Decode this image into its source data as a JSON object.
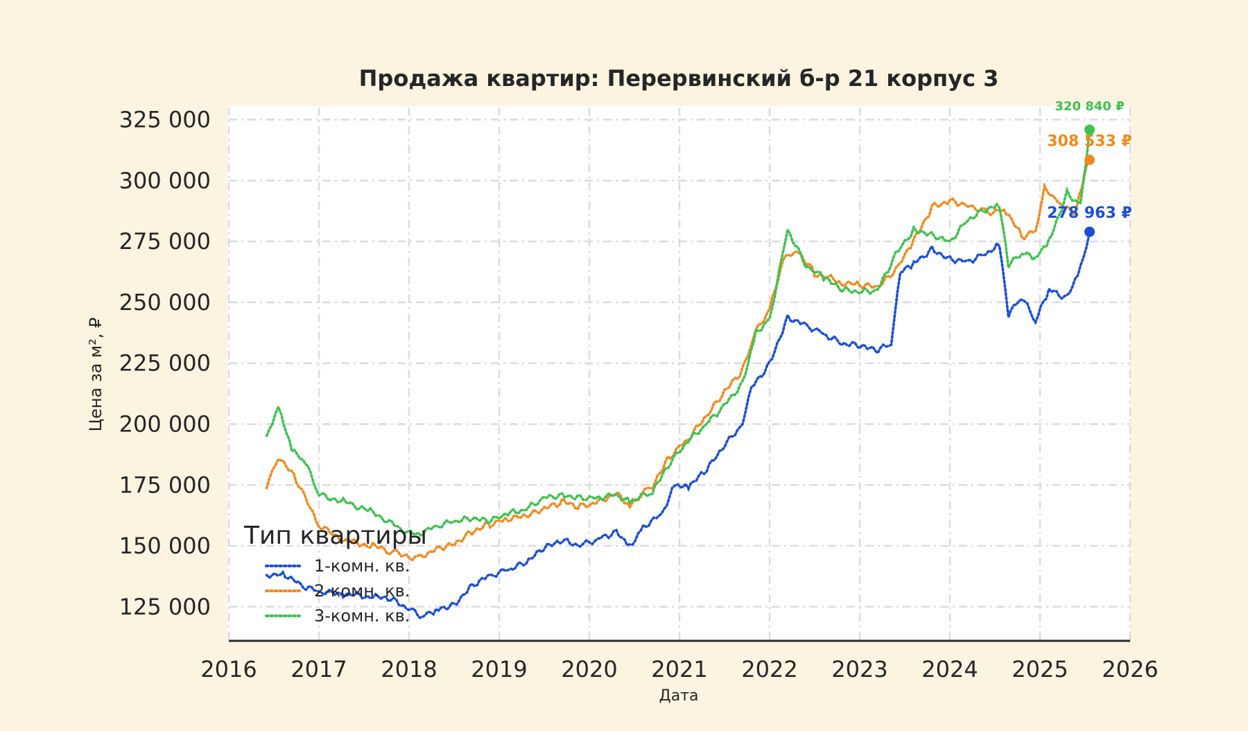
{
  "chart_data": {
    "type": "line",
    "title": "Продажа квартир: Перервинский б-р 21 корпус 3",
    "xlabel": "Дата",
    "ylabel": "Цена за м², ₽",
    "x_range": [
      2016,
      2026
    ],
    "ylim": [
      111000,
      330000
    ],
    "x_ticks": [
      "2016",
      "2017",
      "2018",
      "2019",
      "2020",
      "2021",
      "2022",
      "2023",
      "2024",
      "2025",
      "2026"
    ],
    "y_ticks": [
      {
        "value": 125000,
        "label": "125 000"
      },
      {
        "value": 150000,
        "label": "150 000"
      },
      {
        "value": 175000,
        "label": "175 000"
      },
      {
        "value": 200000,
        "label": "200 000"
      },
      {
        "value": 225000,
        "label": "225 000"
      },
      {
        "value": 250000,
        "label": "250 000"
      },
      {
        "value": 275000,
        "label": "275 000"
      },
      {
        "value": 300000,
        "label": "300 000"
      },
      {
        "value": 325000,
        "label": "325 000"
      }
    ],
    "grid": true,
    "legend": {
      "title": "Тип квартиры",
      "position": "bottom-left"
    },
    "series": [
      {
        "name": "1-комн. кв.",
        "color": "#1a4fd6",
        "x": [
          2016.42,
          2016.6,
          2016.8,
          2017.0,
          2017.3,
          2017.6,
          2017.8,
          2018.0,
          2018.15,
          2018.3,
          2018.5,
          2018.7,
          2018.9,
          2019.1,
          2019.3,
          2019.5,
          2019.7,
          2019.9,
          2020.1,
          2020.3,
          2020.45,
          2020.6,
          2020.8,
          2020.95,
          2021.1,
          2021.3,
          2021.5,
          2021.7,
          2021.8,
          2022.0,
          2022.2,
          2022.4,
          2022.6,
          2022.8,
          2023.0,
          2023.2,
          2023.35,
          2023.45,
          2023.6,
          2023.8,
          2024.0,
          2024.2,
          2024.4,
          2024.55,
          2024.65,
          2024.8,
          2024.95,
          2025.1,
          2025.3,
          2025.45,
          2025.55
        ],
        "y": [
          138000,
          139000,
          134000,
          131000,
          130000,
          129000,
          128000,
          124000,
          121000,
          124000,
          126000,
          134000,
          138000,
          140000,
          143000,
          149000,
          152000,
          150000,
          153000,
          156000,
          150000,
          158000,
          163000,
          175000,
          174000,
          181000,
          191000,
          200000,
          215000,
          225000,
          244000,
          241000,
          237000,
          233000,
          232000,
          230000,
          233000,
          262000,
          266000,
          272000,
          268000,
          267000,
          270000,
          274000,
          245000,
          252000,
          242000,
          255000,
          252000,
          264000,
          278963
        ]
      },
      {
        "name": "2-комн. кв.",
        "color": "#f08a1e",
        "x": [
          2016.42,
          2016.55,
          2016.75,
          2017.0,
          2017.3,
          2017.6,
          2017.85,
          2018.1,
          2018.3,
          2018.5,
          2018.7,
          2018.9,
          2019.1,
          2019.3,
          2019.5,
          2019.7,
          2019.9,
          2020.1,
          2020.3,
          2020.45,
          2020.7,
          2020.9,
          2021.1,
          2021.3,
          2021.5,
          2021.7,
          2021.85,
          2022.0,
          2022.15,
          2022.3,
          2022.5,
          2022.8,
          2023.0,
          2023.2,
          2023.4,
          2023.6,
          2023.8,
          2024.0,
          2024.2,
          2024.45,
          2024.6,
          2024.8,
          2024.95,
          2025.05,
          2025.2,
          2025.4,
          2025.5,
          2025.55
        ],
        "y": [
          175000,
          187000,
          177000,
          158000,
          152000,
          150000,
          147000,
          145000,
          149000,
          151000,
          156000,
          159000,
          161000,
          162000,
          165000,
          168000,
          166000,
          168000,
          172000,
          167000,
          175000,
          187000,
          194000,
          203000,
          213000,
          222000,
          238000,
          247000,
          268000,
          272000,
          262000,
          258000,
          257000,
          256000,
          263000,
          275000,
          289000,
          292000,
          290000,
          287000,
          289000,
          277000,
          279000,
          297000,
          290000,
          287000,
          303000,
          308533
        ]
      },
      {
        "name": "3-комн. кв.",
        "color": "#3ec250",
        "x": [
          2016.42,
          2016.55,
          2016.7,
          2016.85,
          2017.0,
          2017.3,
          2017.6,
          2017.9,
          2018.1,
          2018.3,
          2018.5,
          2018.7,
          2018.9,
          2019.1,
          2019.3,
          2019.5,
          2019.7,
          2019.9,
          2020.1,
          2020.3,
          2020.45,
          2020.7,
          2020.9,
          2021.1,
          2021.3,
          2021.5,
          2021.7,
          2021.85,
          2022.0,
          2022.2,
          2022.4,
          2022.6,
          2022.8,
          2023.0,
          2023.2,
          2023.4,
          2023.6,
          2023.8,
          2024.0,
          2024.2,
          2024.4,
          2024.55,
          2024.65,
          2024.8,
          2024.95,
          2025.1,
          2025.3,
          2025.45,
          2025.55
        ],
        "y": [
          195000,
          207000,
          189000,
          184000,
          171000,
          168000,
          164000,
          157000,
          155000,
          158000,
          160000,
          161000,
          160000,
          163000,
          165000,
          170000,
          171000,
          170000,
          170000,
          171000,
          168000,
          172000,
          184000,
          193000,
          200000,
          208000,
          217000,
          238000,
          243000,
          280000,
          265000,
          260000,
          255000,
          254000,
          255000,
          270000,
          280000,
          278000,
          275000,
          284000,
          288000,
          290000,
          265000,
          270000,
          268000,
          275000,
          295000,
          290000,
          320840
        ]
      }
    ],
    "end_labels": [
      {
        "series": "1-комн. кв.",
        "x": 2025.55,
        "y": 278963,
        "label": "278 963 ₽"
      },
      {
        "series": "2-комн. кв.",
        "x": 2025.55,
        "y": 308533,
        "label": "308 533 ₽"
      },
      {
        "series": "3-комн. кв.",
        "x": 2025.55,
        "y": 320840,
        "label": "320 840 ₽"
      }
    ]
  }
}
